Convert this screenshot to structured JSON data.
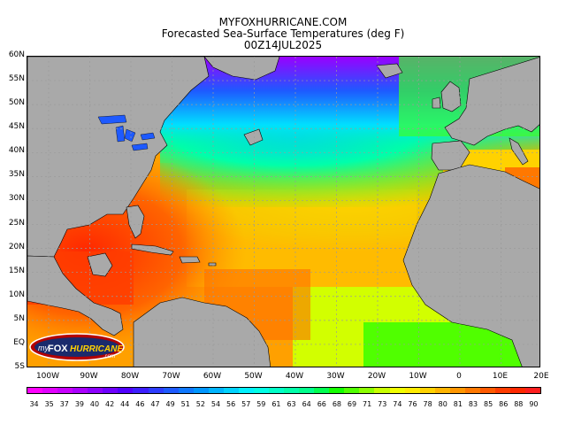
{
  "title": {
    "line1": "MYFOXHURRICANE.COM",
    "line2": "Forecasted Sea-Surface Temperatures (deg F)",
    "line3": "00Z14JUL2025"
  },
  "map": {
    "lat_labels": [
      "60N",
      "55N",
      "50N",
      "45N",
      "40N",
      "35N",
      "30N",
      "25N",
      "20N",
      "15N",
      "10N",
      "5N",
      "EQ",
      "5S"
    ],
    "lon_labels": [
      "100W",
      "90W",
      "80W",
      "70W",
      "60W",
      "50W",
      "40W",
      "30W",
      "20W",
      "10W",
      "0",
      "10E",
      "20E"
    ],
    "colors": {
      "land": "#a9a9a9",
      "gridline": "#9a9a9a",
      "border": "#000000"
    }
  },
  "colorbar": {
    "unit": "deg F",
    "ticks": [
      "34",
      "35",
      "37",
      "39",
      "40",
      "42",
      "44",
      "46",
      "47",
      "49",
      "51",
      "52",
      "54",
      "56",
      "57",
      "59",
      "61",
      "63",
      "64",
      "66",
      "68",
      "69",
      "71",
      "73",
      "74",
      "76",
      "78",
      "80",
      "81",
      "83",
      "85",
      "86",
      "88",
      "90"
    ],
    "colors": [
      "#ff00ff",
      "#e100ff",
      "#c800ff",
      "#aa00ff",
      "#8c00ff",
      "#6e00ff",
      "#5000ff",
      "#3c1eff",
      "#2d3cff",
      "#1e5aff",
      "#0f78ff",
      "#0096ff",
      "#00b4ff",
      "#00d2ff",
      "#00f0ff",
      "#00ffe6",
      "#00ffc8",
      "#00ffaa",
      "#00ff8c",
      "#00ff50",
      "#14ff00",
      "#50ff00",
      "#8cff00",
      "#c8ff00",
      "#f0ff00",
      "#ffeb00",
      "#ffd200",
      "#ffb400",
      "#ff9600",
      "#ff7800",
      "#ff5a00",
      "#ff3c00",
      "#ff2800",
      "#ff1e1e"
    ]
  },
  "logo": {
    "text_my": "my",
    "text_fox": "FOX",
    "text_hurricane": "HURRICANE",
    "text_com": ".com"
  }
}
